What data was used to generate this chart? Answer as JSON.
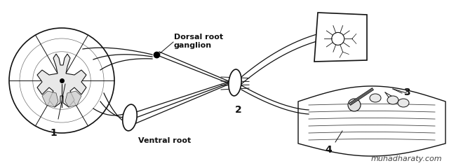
{
  "bg_color": "#ffffff",
  "fig_width": 6.4,
  "fig_height": 2.4,
  "dpi": 100,
  "watermark": "muhadharaty.com",
  "labels": {
    "dorsal_root_ganglion": "Dorsal root\nganglion",
    "ventral_root": "Ventral root",
    "label_1": "1",
    "label_2": "2",
    "label_3": "3",
    "label_4": "4"
  },
  "line_color": "#111111"
}
